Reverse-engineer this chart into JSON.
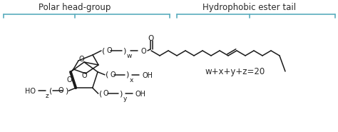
{
  "background_color": "#ffffff",
  "label_polar": "Polar head-group",
  "label_hydrophobic": "Hydrophobic ester tail",
  "label_equation": "w+x+y+z=20",
  "label_color": "#2a2a2a",
  "bracket_color": "#5aadbe",
  "structure_color": "#1a1a1a",
  "label_fontsize": 8.5,
  "eq_fontsize": 8.5,
  "struct_linewidth": 1.1,
  "bracket_linewidth": 1.2
}
